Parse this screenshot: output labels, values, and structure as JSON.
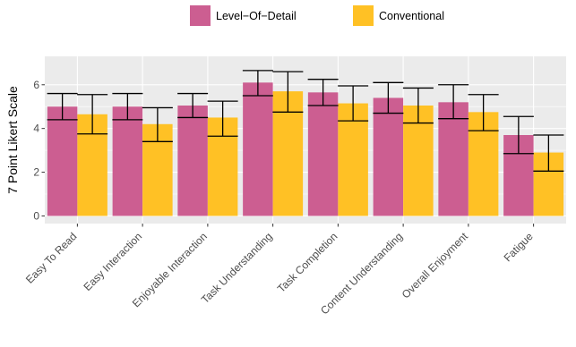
{
  "chart_data": {
    "type": "bar",
    "categories": [
      "Easy To Read",
      "Easy Interaction",
      "Enjoyable Interaction",
      "Task Understanding",
      "Task Completion",
      "Content Understanding",
      "Overall Enjoyment",
      "Fatigue"
    ],
    "series": [
      {
        "name": "Level−Of−Detail",
        "color": "#CC5E91",
        "values": [
          5.0,
          5.0,
          5.05,
          6.1,
          5.65,
          5.4,
          5.2,
          3.7
        ],
        "error_low": [
          4.4,
          4.4,
          4.5,
          5.5,
          5.05,
          4.7,
          4.45,
          2.85
        ],
        "error_high": [
          5.6,
          5.6,
          5.6,
          6.65,
          6.25,
          6.1,
          6.0,
          4.55
        ]
      },
      {
        "name": "Conventional",
        "color": "#FFC125",
        "values": [
          4.65,
          4.2,
          4.5,
          5.7,
          5.15,
          5.05,
          4.75,
          2.9
        ],
        "error_low": [
          3.75,
          3.4,
          3.65,
          4.75,
          4.35,
          4.25,
          3.9,
          2.05
        ],
        "error_high": [
          5.55,
          4.95,
          5.25,
          6.6,
          5.95,
          5.85,
          5.55,
          3.7
        ]
      }
    ],
    "xlabel": "",
    "ylabel": "7 Point Likert Scale",
    "ylim": [
      -0.35,
      7.3
    ],
    "yticks": [
      0,
      2,
      4,
      6
    ],
    "grid": true,
    "legend_position": "top",
    "panel_background": "#EBEBEB",
    "grid_color": "#FFFFFF"
  }
}
